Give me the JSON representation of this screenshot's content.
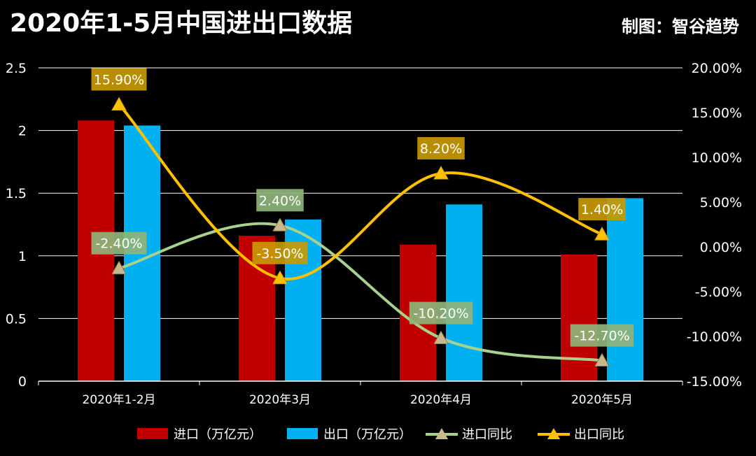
{
  "header": {
    "title": "2020年1-5月中国进出口数据",
    "credit": "制图：智谷趋势"
  },
  "colors": {
    "background": "#000000",
    "import_bar": "#c00000",
    "export_bar": "#00b0f0",
    "import_line": "#a9d18e",
    "export_line": "#ffc000",
    "import_label_bg": "#8fb47a",
    "export_label_bg": "#c89a00",
    "grid": "#ffffff"
  },
  "chart_data": {
    "type": "bar",
    "categories": [
      "2020年1-2月",
      "2020年3月",
      "2020年4月",
      "2020年5月"
    ],
    "series": [
      {
        "name": "进口（万亿元）",
        "kind": "bar",
        "axis": "left",
        "values": [
          2.08,
          1.16,
          1.09,
          1.01
        ]
      },
      {
        "name": "出口（万亿元）",
        "kind": "bar",
        "axis": "left",
        "values": [
          2.04,
          1.29,
          1.41,
          1.46
        ]
      },
      {
        "name": "进口同比",
        "kind": "line",
        "marker": "triangle",
        "axis": "right",
        "values": [
          -2.4,
          2.4,
          -10.2,
          -12.7
        ],
        "labels": [
          "-2.40%",
          "2.40%",
          "-10.20%",
          "-12.70%"
        ]
      },
      {
        "name": "出口同比",
        "kind": "line",
        "marker": "triangle",
        "axis": "right",
        "values": [
          15.9,
          -3.5,
          8.2,
          1.4
        ],
        "labels": [
          "15.90%",
          "-3.50%",
          "8.20%",
          "1.40%"
        ]
      }
    ],
    "y_left": {
      "min": 0,
      "max": 2.5,
      "ticks": [
        "0",
        "0.5",
        "1",
        "1.5",
        "2",
        "2.5"
      ]
    },
    "y_right": {
      "min": -15,
      "max": 20,
      "ticks": [
        "-15.00%",
        "-10.00%",
        "-5.00%",
        "0.00%",
        "5.00%",
        "10.00%",
        "15.00%",
        "20.00%"
      ]
    },
    "grid": true,
    "legend_position": "bottom"
  }
}
